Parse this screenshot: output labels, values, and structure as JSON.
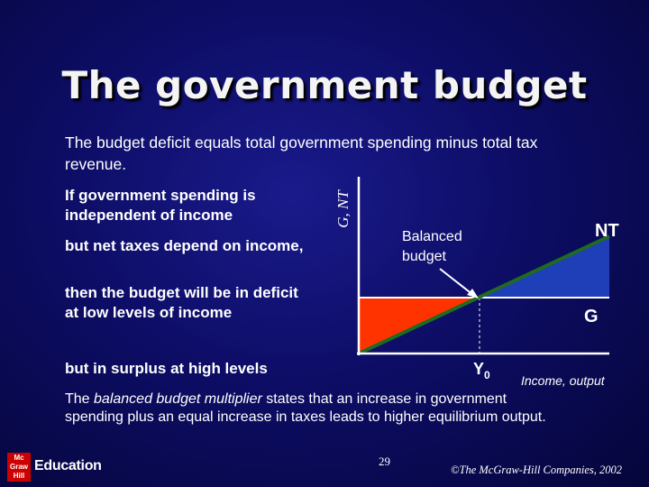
{
  "title": "The government budget",
  "intro": "The budget deficit equals total government spending minus total tax revenue.",
  "conditions": {
    "spending": "If government spending is independent of income",
    "taxes": "but net taxes depend on income,",
    "deficit": "then the budget will be in deficit at low levels of income",
    "surplus": "but in surplus at high levels"
  },
  "diagram": {
    "y_axis_label": "G, NT",
    "x_axis_label": "Income, output",
    "nt_label": "NT",
    "g_label": "G",
    "y0_label": "Y",
    "y0_subscript": "0",
    "balanced_label_line1": "Balanced",
    "balanced_label_line2": "budget",
    "colors": {
      "deficit": "#ff3300",
      "surplus": "#1f3fb8",
      "nt_line": "#1f6b1f",
      "axes": "#ffffff"
    }
  },
  "multiplier": {
    "prefix": "The ",
    "term": "balanced budget multiplier",
    "suffix": " states that an increase in government spending plus an equal increase in taxes leads to higher equilibrium output."
  },
  "footer": {
    "logo_mark": "Mc Graw Hill",
    "logo_text": "Education",
    "page_number": "29",
    "copyright": "©The McGraw-Hill Companies, 2002"
  }
}
